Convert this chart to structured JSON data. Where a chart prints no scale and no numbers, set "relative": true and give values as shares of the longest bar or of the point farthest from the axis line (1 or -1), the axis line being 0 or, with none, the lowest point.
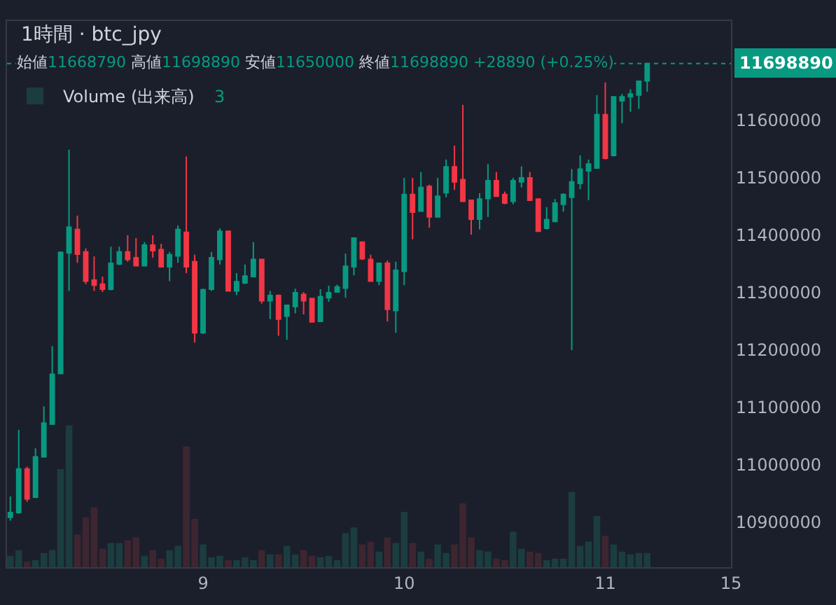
{
  "chart_data": [
    {
      "type": "candlestick",
      "title": "1時間 · btc_jpy",
      "annotations": [
        "始値11668790 高値11698890 安値11650000 終値11698890 +28890 (+0.25%)"
      ],
      "categories": [
        null,
        null,
        null,
        null,
        null,
        null,
        null,
        null,
        null,
        null,
        null,
        null,
        null,
        null,
        null,
        null,
        null,
        null,
        null,
        null,
        null,
        null,
        null,
        "9",
        null,
        null,
        null,
        null,
        null,
        null,
        null,
        null,
        null,
        null,
        null,
        null,
        null,
        null,
        null,
        null,
        null,
        null,
        null,
        null,
        null,
        null,
        null,
        "10",
        null,
        null,
        null,
        null,
        null,
        null,
        null,
        null,
        null,
        null,
        null,
        null,
        null,
        null,
        null,
        null,
        null,
        null,
        null,
        null,
        null,
        null,
        null,
        "11",
        null,
        null,
        null,
        null,
        null,
        null,
        null,
        null,
        null,
        null,
        null,
        null,
        null,
        null,
        "15"
      ],
      "ohlc": [
        [
          10909000,
          10945000,
          10903000,
          10917000
        ],
        [
          10917000,
          11061000,
          10915000,
          10993000
        ],
        [
          10993000,
          10997000,
          10936000,
          10941000
        ],
        [
          10944000,
          11029000,
          10942000,
          11014000
        ],
        [
          11014000,
          11102000,
          11013000,
          11073000
        ],
        [
          11071000,
          11207000,
          11071000,
          11158000
        ],
        [
          11159000,
          11372000,
          11158000,
          11370000
        ],
        [
          11369000,
          11549000,
          11303000,
          11414000
        ],
        [
          11410000,
          11434000,
          11352000,
          11367000
        ],
        [
          11371000,
          11377000,
          11315000,
          11320000
        ],
        [
          11322000,
          11363000,
          11303000,
          11313000
        ],
        [
          11315000,
          11328000,
          11301000,
          11306000
        ],
        [
          11306000,
          11380000,
          11304000,
          11351000
        ],
        [
          11350000,
          11380000,
          11348000,
          11371000
        ],
        [
          11371000,
          11400000,
          11354000,
          11358000
        ],
        [
          11361000,
          11395000,
          11346000,
          11347000
        ],
        [
          11347000,
          11388000,
          11346000,
          11383000
        ],
        [
          11383000,
          11400000,
          11361000,
          11373000
        ],
        [
          11375000,
          11385000,
          11344000,
          11345000
        ],
        [
          11345000,
          11371000,
          11320000,
          11366000
        ],
        [
          11364000,
          11417000,
          11352000,
          11410000
        ],
        [
          11405000,
          11537000,
          11334000,
          11345000
        ],
        [
          11354000,
          11366000,
          11213000,
          11230000
        ],
        [
          11230000,
          11307000,
          11228000,
          11305000
        ],
        [
          11306000,
          11371000,
          11303000,
          11361000
        ],
        [
          11358000,
          11412000,
          11349000,
          11407000
        ],
        [
          11407000,
          11408000,
          11302000,
          11303000
        ],
        [
          11303000,
          11334000,
          11296000,
          11319000
        ],
        [
          11317000,
          11349000,
          11315000,
          11329000
        ],
        [
          11328000,
          11388000,
          11327000,
          11358000
        ],
        [
          11358000,
          11359000,
          11281000,
          11286000
        ],
        [
          11286000,
          11303000,
          11254000,
          11295000
        ],
        [
          11295000,
          11297000,
          11225000,
          11254000
        ],
        [
          11259000,
          11279000,
          11218000,
          11278000
        ],
        [
          11276000,
          11307000,
          11264000,
          11300000
        ],
        [
          11297000,
          11301000,
          11262000,
          11286000
        ],
        [
          11290000,
          11291000,
          11248000,
          11249000
        ],
        [
          11250000,
          11306000,
          11249000,
          11293000
        ],
        [
          11291000,
          11312000,
          11284000,
          11300000
        ],
        [
          11301000,
          11314000,
          11300000,
          11310000
        ],
        [
          11308000,
          11368000,
          11291000,
          11346000
        ],
        [
          11345000,
          11396000,
          11330000,
          11395000
        ],
        [
          11388000,
          11389000,
          11357000,
          11359000
        ],
        [
          11358000,
          11366000,
          11319000,
          11320000
        ],
        [
          11320000,
          11352000,
          11313000,
          11351000
        ],
        [
          11351000,
          11356000,
          11250000,
          11271000
        ],
        [
          11269000,
          11354000,
          11230000,
          11339000
        ],
        [
          11337000,
          11500000,
          11313000,
          11471000
        ],
        [
          11471000,
          11500000,
          11393000,
          11440000
        ],
        [
          11442000,
          11510000,
          11441000,
          11483000
        ],
        [
          11485000,
          11488000,
          11413000,
          11432000
        ],
        [
          11432000,
          11500000,
          11431000,
          11468000
        ],
        [
          11474000,
          11532000,
          11466000,
          11519000
        ],
        [
          11519000,
          11556000,
          11479000,
          11493000
        ],
        [
          11497000,
          11627000,
          11458000,
          11459000
        ],
        [
          11461000,
          11462000,
          11401000,
          11428000
        ],
        [
          11428000,
          11473000,
          11410000,
          11463000
        ],
        [
          11464000,
          11524000,
          11432000,
          11495000
        ],
        [
          11495000,
          11510000,
          11467000,
          11468000
        ],
        [
          11471000,
          11476000,
          11454000,
          11456000
        ],
        [
          11459000,
          11500000,
          11454000,
          11495000
        ],
        [
          11493000,
          11520000,
          11483000,
          11500000
        ],
        [
          11500000,
          11510000,
          11460000,
          11461000
        ],
        [
          11463000,
          11464000,
          11406000,
          11407000
        ],
        [
          11412000,
          11449000,
          11410000,
          11427000
        ],
        [
          11424000,
          11463000,
          11423000,
          11456000
        ],
        [
          11454000,
          11473000,
          11441000,
          11471000
        ],
        [
          11466000,
          11515000,
          11200000,
          11493000
        ],
        [
          11490000,
          11539000,
          11480000,
          11515000
        ],
        [
          11512000,
          11532000,
          11461000,
          11524000
        ],
        [
          11517000,
          11644000,
          11516000,
          11610000
        ],
        [
          11610000,
          11666000,
          11532000,
          11534000
        ],
        [
          11539000,
          11642000,
          11537000,
          11641000
        ],
        [
          11634000,
          11646000,
          11595000,
          11641000
        ],
        [
          11641000,
          11654000,
          11615000,
          11646000
        ],
        [
          11644000,
          11669000,
          11620000,
          11668000
        ],
        [
          11668790,
          11698890,
          11650000,
          11698890
        ],
        null,
        null,
        null,
        null,
        null,
        null,
        null,
        null,
        null,
        null
      ],
      "colors": [
        "#089981",
        "#089981",
        "#f23645",
        "#089981",
        "#089981",
        "#089981",
        "#089981",
        "#089981",
        "#f23645",
        "#f23645",
        "#f23645",
        "#f23645",
        "#089981",
        "#089981",
        "#f23645",
        "#f23645",
        "#089981",
        "#f23645",
        "#f23645",
        "#089981",
        "#089981",
        "#f23645",
        "#f23645",
        "#089981",
        "#089981",
        "#089981",
        "#f23645",
        "#089981",
        "#089981",
        "#089981",
        "#f23645",
        "#089981",
        "#f23645",
        "#089981",
        "#089981",
        "#f23645",
        "#f23645",
        "#089981",
        "#089981",
        "#089981",
        "#089981",
        "#089981",
        "#f23645",
        "#f23645",
        "#089981",
        "#f23645",
        "#089981",
        "#089981",
        "#f23645",
        "#089981",
        "#f23645",
        "#089981",
        "#089981",
        "#f23645",
        "#f23645",
        "#f23645",
        "#089981",
        "#089981",
        "#f23645",
        "#f23645",
        "#089981",
        "#089981",
        "#f23645",
        "#f23645",
        "#089981",
        "#089981",
        "#089981",
        "#089981",
        "#089981",
        "#089981",
        "#089981",
        "#f23645",
        "#089981",
        "#089981",
        "#089981",
        "#089981",
        "#089981",
        null,
        null,
        null,
        null,
        null,
        null,
        null,
        null,
        null,
        null
      ],
      "ylim": [
        10822000,
        11773000
      ],
      "yticks": [
        10900000,
        11000000,
        11100000,
        11200000,
        11300000,
        11400000,
        11500000,
        11600000
      ],
      "ref_lines": [
        {
          "axis": "y",
          "value": 11698890,
          "label": "11698890",
          "color": "#089981",
          "line_style": "dotted"
        }
      ]
    },
    {
      "type": "bar",
      "relative": true,
      "legend": "top left",
      "annotations": [
        "3"
      ],
      "tick_labels": false,
      "categories": [
        null,
        null,
        null,
        null,
        null,
        null,
        null,
        null,
        null,
        null,
        null,
        null,
        null,
        null,
        null,
        null,
        null,
        null,
        null,
        null,
        null,
        null,
        null,
        "9",
        null,
        null,
        null,
        null,
        null,
        null,
        null,
        null,
        null,
        null,
        null,
        null,
        null,
        null,
        null,
        null,
        null,
        null,
        null,
        null,
        null,
        null,
        null,
        "10",
        null,
        null,
        null,
        null,
        null,
        null,
        null,
        null,
        null,
        null,
        null,
        null,
        null,
        null,
        null,
        null,
        null,
        null,
        null,
        null,
        null,
        null,
        null,
        "11",
        null,
        null,
        null,
        null,
        null,
        null,
        null,
        null,
        null,
        null,
        null,
        null,
        null,
        null,
        "15"
      ],
      "series": [
        {
          "name": "Volume (出来高)",
          "values": [
            0.08,
            0.12,
            0.04,
            0.05,
            0.1,
            0.12,
            0.69,
            1,
            0.23,
            0.35,
            0.42,
            0.13,
            0.17,
            0.17,
            0.19,
            0.21,
            0.08,
            0.12,
            0.06,
            0.12,
            0.15,
            0.85,
            0.34,
            0.16,
            0.07,
            0.08,
            0.05,
            0.05,
            0.07,
            0.05,
            0.12,
            0.09,
            0.09,
            0.15,
            0.09,
            0.12,
            0.08,
            0.07,
            0.08,
            0.05,
            0.24,
            0.28,
            0.16,
            0.18,
            0.11,
            0.21,
            0.17,
            0.39,
            0.17,
            0.11,
            0.06,
            0.16,
            0.1,
            0.16,
            0.45,
            0.21,
            0.12,
            0.11,
            0.06,
            0.05,
            0.25,
            0.13,
            0.11,
            0.1,
            0.05,
            0.06,
            0.06,
            0.53,
            0.15,
            0.18,
            0.36,
            0.22,
            0.16,
            0.11,
            0.09,
            0.1,
            0.1,
            null,
            null,
            null,
            null,
            null,
            null,
            null,
            null,
            null,
            null
          ],
          "colors": [
            "#1b3d3f",
            "#1b3d3f",
            "#3d2630",
            "#1b3d3f",
            "#1b3d3f",
            "#1b3d3f",
            "#1b3d3f",
            "#1b3d3f",
            "#3d2630",
            "#3d2630",
            "#3d2630",
            "#3d2630",
            "#1b3d3f",
            "#1b3d3f",
            "#3d2630",
            "#3d2630",
            "#1b3d3f",
            "#3d2630",
            "#3d2630",
            "#1b3d3f",
            "#1b3d3f",
            "#3d2630",
            "#3d2630",
            "#1b3d3f",
            "#1b3d3f",
            "#1b3d3f",
            "#3d2630",
            "#1b3d3f",
            "#1b3d3f",
            "#1b3d3f",
            "#3d2630",
            "#1b3d3f",
            "#3d2630",
            "#1b3d3f",
            "#1b3d3f",
            "#3d2630",
            "#3d2630",
            "#1b3d3f",
            "#1b3d3f",
            "#1b3d3f",
            "#1b3d3f",
            "#1b3d3f",
            "#3d2630",
            "#3d2630",
            "#1b3d3f",
            "#3d2630",
            "#1b3d3f",
            "#1b3d3f",
            "#3d2630",
            "#1b3d3f",
            "#3d2630",
            "#1b3d3f",
            "#1b3d3f",
            "#3d2630",
            "#3d2630",
            "#3d2630",
            "#1b3d3f",
            "#1b3d3f",
            "#3d2630",
            "#3d2630",
            "#1b3d3f",
            "#1b3d3f",
            "#3d2630",
            "#3d2630",
            "#1b3d3f",
            "#1b3d3f",
            "#1b3d3f",
            "#1b3d3f",
            "#1b3d3f",
            "#1b3d3f",
            "#1b3d3f",
            "#3d2630",
            "#1b3d3f",
            "#1b3d3f",
            "#1b3d3f",
            "#1b3d3f",
            "#1b3d3f",
            null,
            null,
            null,
            null,
            null,
            null,
            null,
            null,
            null,
            null
          ]
        }
      ]
    }
  ]
}
